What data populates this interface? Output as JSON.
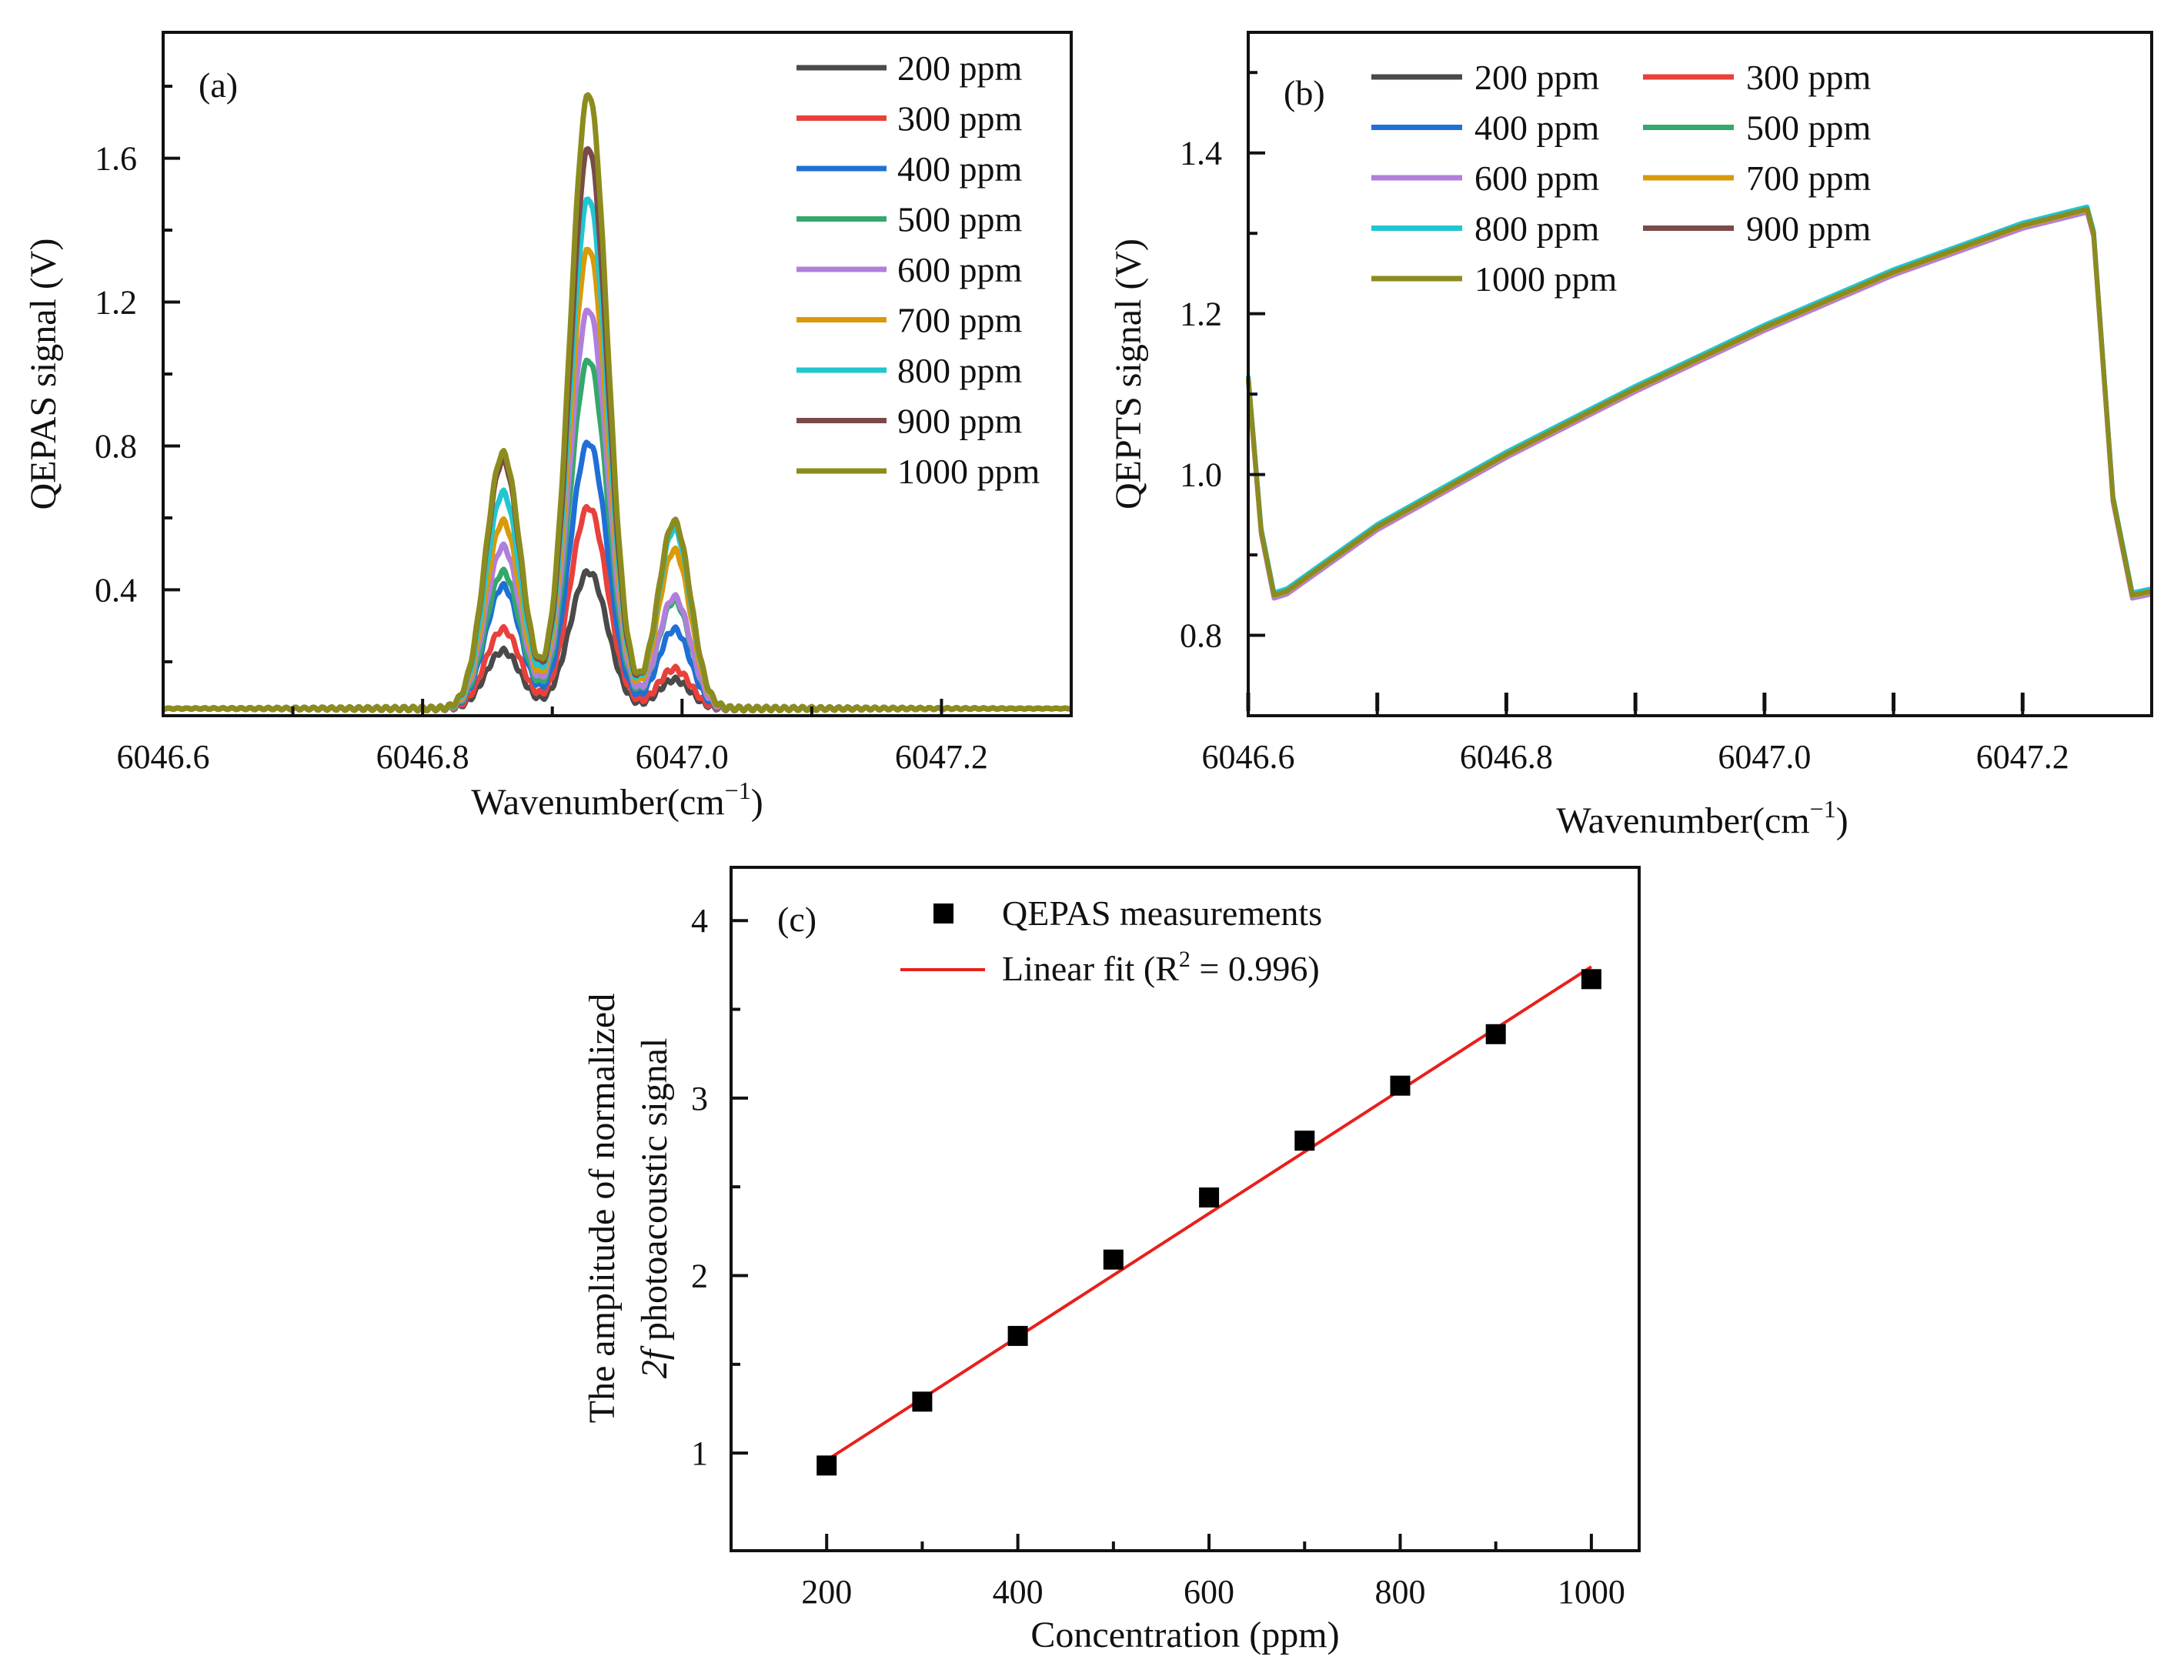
{
  "chart_data": [
    {
      "panel_label": "(a)",
      "type": "line",
      "title": "",
      "xlabel": "Wavenumber(cm",
      "xlabel_sup": "−1",
      "xlabel_close": ")",
      "ylabel": "QEPAS signal  (V)",
      "xlim": [
        6046.6,
        6047.3
      ],
      "ylim": [
        0.05,
        1.95
      ],
      "xticks": [
        6046.6,
        6046.8,
        6047.0,
        6047.2
      ],
      "xtick_labels": [
        "6046.6",
        "6046.8",
        "6047.0",
        "6047.2"
      ],
      "yticks": [
        0.4,
        0.8,
        1.2,
        1.6
      ],
      "ytick_labels": [
        "0.4",
        "0.8",
        "1.2",
        "1.6"
      ],
      "baseline": 0.07,
      "legend_position": "top-right",
      "series": [
        {
          "name": "200 ppm",
          "color": "#4a4a4a",
          "peaks": [
            0.22,
            0.44,
            0.14
          ]
        },
        {
          "name": "300 ppm",
          "color": "#e8413c",
          "peaks": [
            0.28,
            0.62,
            0.17
          ]
        },
        {
          "name": "400 ppm",
          "color": "#1f6fd6",
          "peaks": [
            0.4,
            0.8,
            0.28
          ]
        },
        {
          "name": "500 ppm",
          "color": "#35a86b",
          "peaks": [
            0.44,
            1.03,
            0.36
          ]
        },
        {
          "name": "600 ppm",
          "color": "#b07fdc",
          "peaks": [
            0.51,
            1.17,
            0.37
          ]
        },
        {
          "name": "700 ppm",
          "color": "#d99a0a",
          "peaks": [
            0.58,
            1.34,
            0.5
          ]
        },
        {
          "name": "800 ppm",
          "color": "#22c6cf",
          "peaks": [
            0.66,
            1.48,
            0.56
          ]
        },
        {
          "name": "900 ppm",
          "color": "#7a4a4a",
          "peaks": [
            0.75,
            1.62,
            0.58
          ]
        },
        {
          "name": "1000 ppm",
          "color": "#8c8c1e",
          "peaks": [
            0.77,
            1.77,
            0.58
          ]
        }
      ]
    },
    {
      "panel_label": "(b)",
      "type": "line",
      "title": "",
      "xlabel": "Wavenumber(cm",
      "xlabel_sup": "−1",
      "xlabel_close": ")",
      "ylabel": "QEPTS signal  (V)",
      "xlim": [
        6046.6,
        6047.3
      ],
      "ylim": [
        0.7,
        1.55
      ],
      "xticks": [
        6046.6,
        6046.8,
        6047.0,
        6047.2
      ],
      "xtick_labels": [
        "6046.6",
        "6046.8",
        "6047.0",
        "6047.2"
      ],
      "yticks": [
        0.8,
        1.0,
        1.2,
        1.4
      ],
      "ytick_labels": [
        "0.8",
        "1.0",
        "1.2",
        "1.4"
      ],
      "legend_position": "top-left",
      "curve": {
        "x": [
          6046.6,
          6046.61,
          6046.62,
          6046.63,
          6046.7,
          6046.8,
          6046.9,
          6047.0,
          6047.1,
          6047.2,
          6047.25,
          6047.255,
          6047.27,
          6047.285,
          6047.3
        ],
        "y": [
          1.12,
          0.93,
          0.85,
          0.855,
          0.935,
          1.025,
          1.107,
          1.183,
          1.252,
          1.31,
          1.33,
          1.3,
          0.97,
          0.85,
          0.855
        ]
      },
      "series": [
        {
          "name": "200 ppm",
          "color": "#4a4a4a",
          "offset": 0.0
        },
        {
          "name": "300 ppm",
          "color": "#e8413c",
          "offset": 0.001
        },
        {
          "name": "400 ppm",
          "color": "#1f6fd6",
          "offset": 0.002
        },
        {
          "name": "500 ppm",
          "color": "#35a86b",
          "offset": 0.001
        },
        {
          "name": "600 ppm",
          "color": "#b07fdc",
          "offset": -0.004
        },
        {
          "name": "700 ppm",
          "color": "#d99a0a",
          "offset": -0.001
        },
        {
          "name": "800 ppm",
          "color": "#22c6cf",
          "offset": 0.003
        },
        {
          "name": "900 ppm",
          "color": "#7a4a4a",
          "offset": 0.0
        },
        {
          "name": "1000 ppm",
          "color": "#8c8c1e",
          "offset": 0.0
        }
      ]
    },
    {
      "panel_label": "(c)",
      "type": "scatter",
      "title": "",
      "xlabel": "Concentration (ppm)",
      "ylabel_line1": "The amplitude of normalized",
      "ylabel_line2_italic": "2f",
      "ylabel_line2": " photoacoustic signal",
      "xlim": [
        100,
        1050
      ],
      "ylim": [
        0.45,
        4.3
      ],
      "xticks": [
        200,
        400,
        600,
        800,
        1000
      ],
      "xtick_labels": [
        "200",
        "400",
        "600",
        "800",
        "1000"
      ],
      "yticks": [
        1,
        2,
        3,
        4
      ],
      "ytick_labels": [
        "1",
        "2",
        "3",
        "4"
      ],
      "legend_position": "top-center",
      "scatter": {
        "name": "QEPAS measurements",
        "color": "#000000",
        "x": [
          200,
          300,
          400,
          500,
          600,
          700,
          800,
          900,
          1000
        ],
        "y": [
          0.93,
          1.29,
          1.66,
          2.09,
          2.44,
          2.76,
          3.07,
          3.36,
          3.67
        ]
      },
      "fit": {
        "name_prefix": "Linear fit (R",
        "name_sup": "2",
        "name_suffix": " = 0.996)",
        "color": "#e8201c",
        "x": [
          200,
          1000
        ],
        "y": [
          0.96,
          3.74
        ]
      }
    }
  ]
}
